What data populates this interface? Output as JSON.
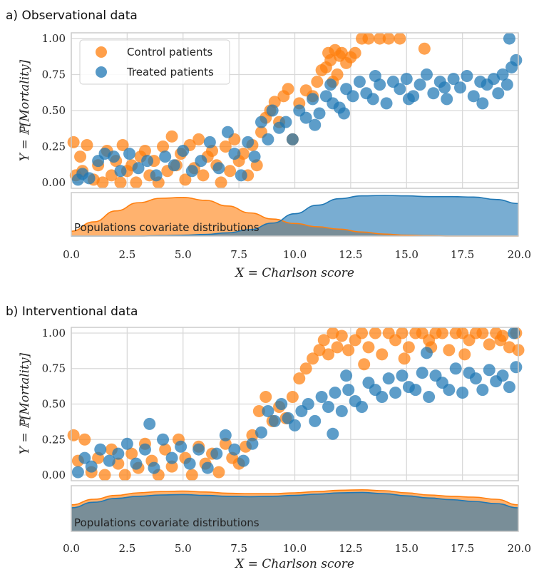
{
  "colors": {
    "control": "#ff7f0e",
    "treated": "#1f77b4",
    "grid": "#d9d9d9",
    "frame": "#cccccc"
  },
  "chart_data": [
    {
      "type": "scatter",
      "title": "a) Observational data",
      "xlabel": "X = Charlson score",
      "ylabel": "Y = ℙ[Mortality]",
      "xlim": [
        0,
        20
      ],
      "ylim": [
        -0.04,
        1.04
      ],
      "xticks": [
        "0.0",
        "2.5",
        "5.0",
        "7.5",
        "10.0",
        "12.5",
        "15.0",
        "17.5",
        "20.0"
      ],
      "yticks": [
        "0.00",
        "0.25",
        "0.50",
        "0.75",
        "1.00"
      ],
      "grid": true,
      "legend": {
        "position": "top-left",
        "entries": [
          "Control patients",
          "Treated patients"
        ]
      },
      "density_label": "Populations covariate distributions",
      "density": {
        "x": [
          0,
          1,
          2,
          3,
          4,
          5,
          6,
          7,
          8,
          9,
          10,
          11,
          12,
          13,
          14,
          15,
          16,
          17,
          18,
          19,
          20
        ],
        "control": [
          0.12,
          0.35,
          0.62,
          0.82,
          0.93,
          0.95,
          0.88,
          0.74,
          0.57,
          0.42,
          0.31,
          0.23,
          0.17,
          0.1,
          0.05,
          0.02,
          0.01,
          0.0,
          0.0,
          0.0,
          0.0
        ],
        "treated": [
          0.0,
          0.0,
          0.0,
          0.0,
          0.01,
          0.02,
          0.04,
          0.08,
          0.16,
          0.32,
          0.55,
          0.76,
          0.92,
          0.99,
          1.0,
          0.99,
          0.97,
          0.97,
          0.96,
          0.9,
          0.8
        ]
      },
      "series": [
        {
          "name": "Control patients",
          "x": [
            0.1,
            0.2,
            0.4,
            0.5,
            0.7,
            1.0,
            1.2,
            1.4,
            1.6,
            1.8,
            2.0,
            2.2,
            2.3,
            2.5,
            2.7,
            2.9,
            3.1,
            3.3,
            3.5,
            3.7,
            3.9,
            4.1,
            4.3,
            4.5,
            4.7,
            4.9,
            5.1,
            5.3,
            5.5,
            5.7,
            5.9,
            6.1,
            6.3,
            6.5,
            6.7,
            6.9,
            7.1,
            7.3,
            7.5,
            7.7,
            7.9,
            8.1,
            8.3,
            8.5,
            8.7,
            8.9,
            9.1,
            9.3,
            9.5,
            9.7,
            9.9,
            10.2,
            10.5,
            10.8,
            11.0,
            11.2,
            11.4,
            11.5,
            11.6,
            11.7,
            11.8,
            11.9,
            12.0,
            12.1,
            12.3,
            12.5,
            12.7,
            13.0,
            13.3,
            13.8,
            14.2,
            14.7,
            15.8
          ],
          "y": [
            0.28,
            0.05,
            0.18,
            0.08,
            0.26,
            0.02,
            0.12,
            0.0,
            0.22,
            0.05,
            0.15,
            0.0,
            0.26,
            0.08,
            0.12,
            0.0,
            0.18,
            0.22,
            0.05,
            0.15,
            0.0,
            0.25,
            0.08,
            0.32,
            0.12,
            0.2,
            0.02,
            0.26,
            0.1,
            0.3,
            0.05,
            0.18,
            0.22,
            0.12,
            0.0,
            0.25,
            0.08,
            0.3,
            0.15,
            0.2,
            0.05,
            0.26,
            0.12,
            0.35,
            0.45,
            0.5,
            0.56,
            0.42,
            0.6,
            0.65,
            0.3,
            0.55,
            0.64,
            0.6,
            0.7,
            0.78,
            0.8,
            0.9,
            0.85,
            0.7,
            0.92,
            0.75,
            0.88,
            0.9,
            0.83,
            0.87,
            0.9,
            1.0,
            1.0,
            1.0,
            1.0,
            1.0,
            0.93
          ]
        },
        {
          "name": "Treated patients",
          "x": [
            0.3,
            0.5,
            0.8,
            1.2,
            1.5,
            1.9,
            2.2,
            2.6,
            3.0,
            3.4,
            3.8,
            4.2,
            4.6,
            5.0,
            5.4,
            5.8,
            6.2,
            6.6,
            7.0,
            7.3,
            7.6,
            7.9,
            8.2,
            8.5,
            8.8,
            9.0,
            9.3,
            9.6,
            9.9,
            10.2,
            10.5,
            10.8,
            11.1,
            11.4,
            11.7,
            12.0,
            12.3,
            12.6,
            12.9,
            13.2,
            13.5,
            13.8,
            14.1,
            14.4,
            14.7,
            15.0,
            15.3,
            15.6,
            15.9,
            16.2,
            16.5,
            16.8,
            17.1,
            17.4,
            17.7,
            18.0,
            18.3,
            18.6,
            18.9,
            19.1,
            19.3,
            19.5,
            19.7,
            19.9,
            12.2,
            13.6,
            15.1,
            16.7,
            18.4,
            19.6,
            10.9,
            11.6
          ],
          "y": [
            0.02,
            0.06,
            0.03,
            0.15,
            0.2,
            0.18,
            0.08,
            0.2,
            0.1,
            0.15,
            0.05,
            0.18,
            0.12,
            0.22,
            0.08,
            0.15,
            0.28,
            0.1,
            0.35,
            0.2,
            0.05,
            0.28,
            0.18,
            0.42,
            0.3,
            0.5,
            0.38,
            0.42,
            0.3,
            0.5,
            0.45,
            0.58,
            0.48,
            0.6,
            0.55,
            0.52,
            0.65,
            0.6,
            0.7,
            0.62,
            0.58,
            0.68,
            0.55,
            0.7,
            0.65,
            0.72,
            0.6,
            0.68,
            0.75,
            0.62,
            0.7,
            0.58,
            0.72,
            0.66,
            0.74,
            0.6,
            0.7,
            0.68,
            0.72,
            0.62,
            0.75,
            0.68,
            0.8,
            0.85,
            0.48,
            0.74,
            0.58,
            0.66,
            0.55,
            1.0,
            0.4,
            0.68
          ]
        }
      ]
    },
    {
      "type": "scatter",
      "title": "b) Interventional data",
      "xlabel": "X = Charlson score",
      "ylabel": "Y = ℙ[Mortality]",
      "xlim": [
        0,
        20
      ],
      "ylim": [
        -0.04,
        1.04
      ],
      "xticks": [
        "0.0",
        "2.5",
        "5.0",
        "7.5",
        "10.0",
        "12.5",
        "15.0",
        "17.5",
        "20.0"
      ],
      "yticks": [
        "0.00",
        "0.25",
        "0.50",
        "0.75",
        "1.00"
      ],
      "grid": true,
      "density_label": "Populations covariate distributions",
      "density": {
        "x": [
          0,
          1,
          2,
          3,
          4,
          5,
          6,
          7,
          8,
          9,
          10,
          11,
          12,
          13,
          14,
          15,
          16,
          17,
          18,
          19,
          20
        ],
        "control": [
          0.62,
          0.75,
          0.84,
          0.9,
          0.93,
          0.94,
          0.92,
          0.89,
          0.88,
          0.88,
          0.9,
          0.93,
          0.96,
          0.97,
          0.95,
          0.9,
          0.85,
          0.82,
          0.8,
          0.75,
          0.62
        ],
        "treated": [
          0.55,
          0.68,
          0.77,
          0.82,
          0.85,
          0.86,
          0.84,
          0.82,
          0.81,
          0.82,
          0.84,
          0.87,
          0.9,
          0.91,
          0.88,
          0.83,
          0.78,
          0.74,
          0.7,
          0.65,
          0.55
        ]
      },
      "series": [
        {
          "name": "Control patients",
          "x": [
            0.1,
            0.3,
            0.6,
            0.9,
            1.2,
            1.5,
            1.8,
            2.1,
            2.4,
            2.7,
            3.0,
            3.3,
            3.6,
            3.9,
            4.2,
            4.5,
            4.8,
            5.1,
            5.4,
            5.7,
            6.0,
            6.3,
            6.6,
            6.9,
            7.2,
            7.5,
            7.8,
            8.1,
            8.4,
            8.7,
            9.0,
            9.3,
            9.6,
            9.9,
            10.2,
            10.5,
            10.8,
            11.1,
            11.3,
            11.5,
            11.7,
            11.9,
            12.1,
            12.4,
            12.7,
            13.0,
            13.3,
            13.6,
            13.9,
            14.2,
            14.5,
            14.8,
            15.1,
            15.4,
            15.7,
            16.0,
            16.3,
            16.6,
            16.9,
            17.2,
            17.5,
            17.8,
            18.1,
            18.4,
            18.7,
            19.0,
            19.3,
            19.6,
            19.9,
            13.1,
            14.9,
            16.1,
            17.6,
            19.2,
            20.0
          ],
          "y": [
            0.28,
            0.1,
            0.25,
            0.02,
            0.12,
            0.0,
            0.18,
            0.08,
            0.0,
            0.15,
            0.05,
            0.22,
            0.1,
            0.0,
            0.18,
            0.06,
            0.25,
            0.12,
            0.0,
            0.2,
            0.08,
            0.15,
            0.02,
            0.22,
            0.12,
            0.08,
            0.2,
            0.28,
            0.45,
            0.55,
            0.38,
            0.48,
            0.4,
            0.55,
            0.68,
            0.75,
            0.82,
            0.88,
            0.95,
            0.85,
            1.0,
            0.9,
            0.98,
            0.88,
            0.95,
            1.0,
            0.9,
            1.0,
            0.85,
            1.0,
            0.95,
            1.0,
            0.9,
            1.0,
            1.0,
            0.95,
            1.0,
            1.0,
            0.88,
            1.0,
            1.0,
            0.95,
            1.0,
            1.0,
            0.92,
            1.0,
            0.98,
            0.9,
            1.0,
            0.78,
            0.82,
            0.9,
            0.85,
            0.95,
            0.88
          ]
        },
        {
          "name": "Treated patients",
          "x": [
            0.3,
            0.6,
            0.9,
            1.3,
            1.7,
            2.1,
            2.5,
            2.9,
            3.3,
            3.7,
            4.1,
            4.5,
            4.9,
            5.3,
            5.7,
            6.1,
            6.5,
            6.9,
            7.3,
            7.7,
            8.1,
            8.5,
            8.8,
            9.1,
            9.4,
            9.7,
            10.0,
            10.3,
            10.6,
            10.9,
            11.2,
            11.5,
            11.8,
            12.1,
            12.4,
            12.7,
            13.0,
            13.3,
            13.6,
            13.9,
            14.2,
            14.5,
            14.8,
            15.1,
            15.4,
            15.7,
            16.0,
            16.3,
            16.6,
            16.9,
            17.2,
            17.5,
            17.8,
            18.1,
            18.4,
            18.7,
            19.0,
            19.3,
            19.6,
            19.9,
            3.5,
            11.7,
            12.3,
            15.9,
            19.8
          ],
          "y": [
            0.02,
            0.12,
            0.06,
            0.18,
            0.1,
            0.15,
            0.22,
            0.08,
            0.18,
            0.05,
            0.25,
            0.12,
            0.2,
            0.08,
            0.18,
            0.05,
            0.15,
            0.28,
            0.18,
            0.1,
            0.22,
            0.3,
            0.45,
            0.38,
            0.5,
            0.4,
            0.35,
            0.45,
            0.5,
            0.38,
            0.55,
            0.48,
            0.58,
            0.45,
            0.6,
            0.52,
            0.48,
            0.65,
            0.6,
            0.55,
            0.68,
            0.58,
            0.7,
            0.62,
            0.6,
            0.72,
            0.55,
            0.7,
            0.65,
            0.6,
            0.75,
            0.58,
            0.72,
            0.68,
            0.6,
            0.74,
            0.66,
            0.7,
            0.62,
            0.76,
            0.36,
            0.29,
            0.7,
            0.86,
            1.0
          ]
        }
      ]
    }
  ]
}
